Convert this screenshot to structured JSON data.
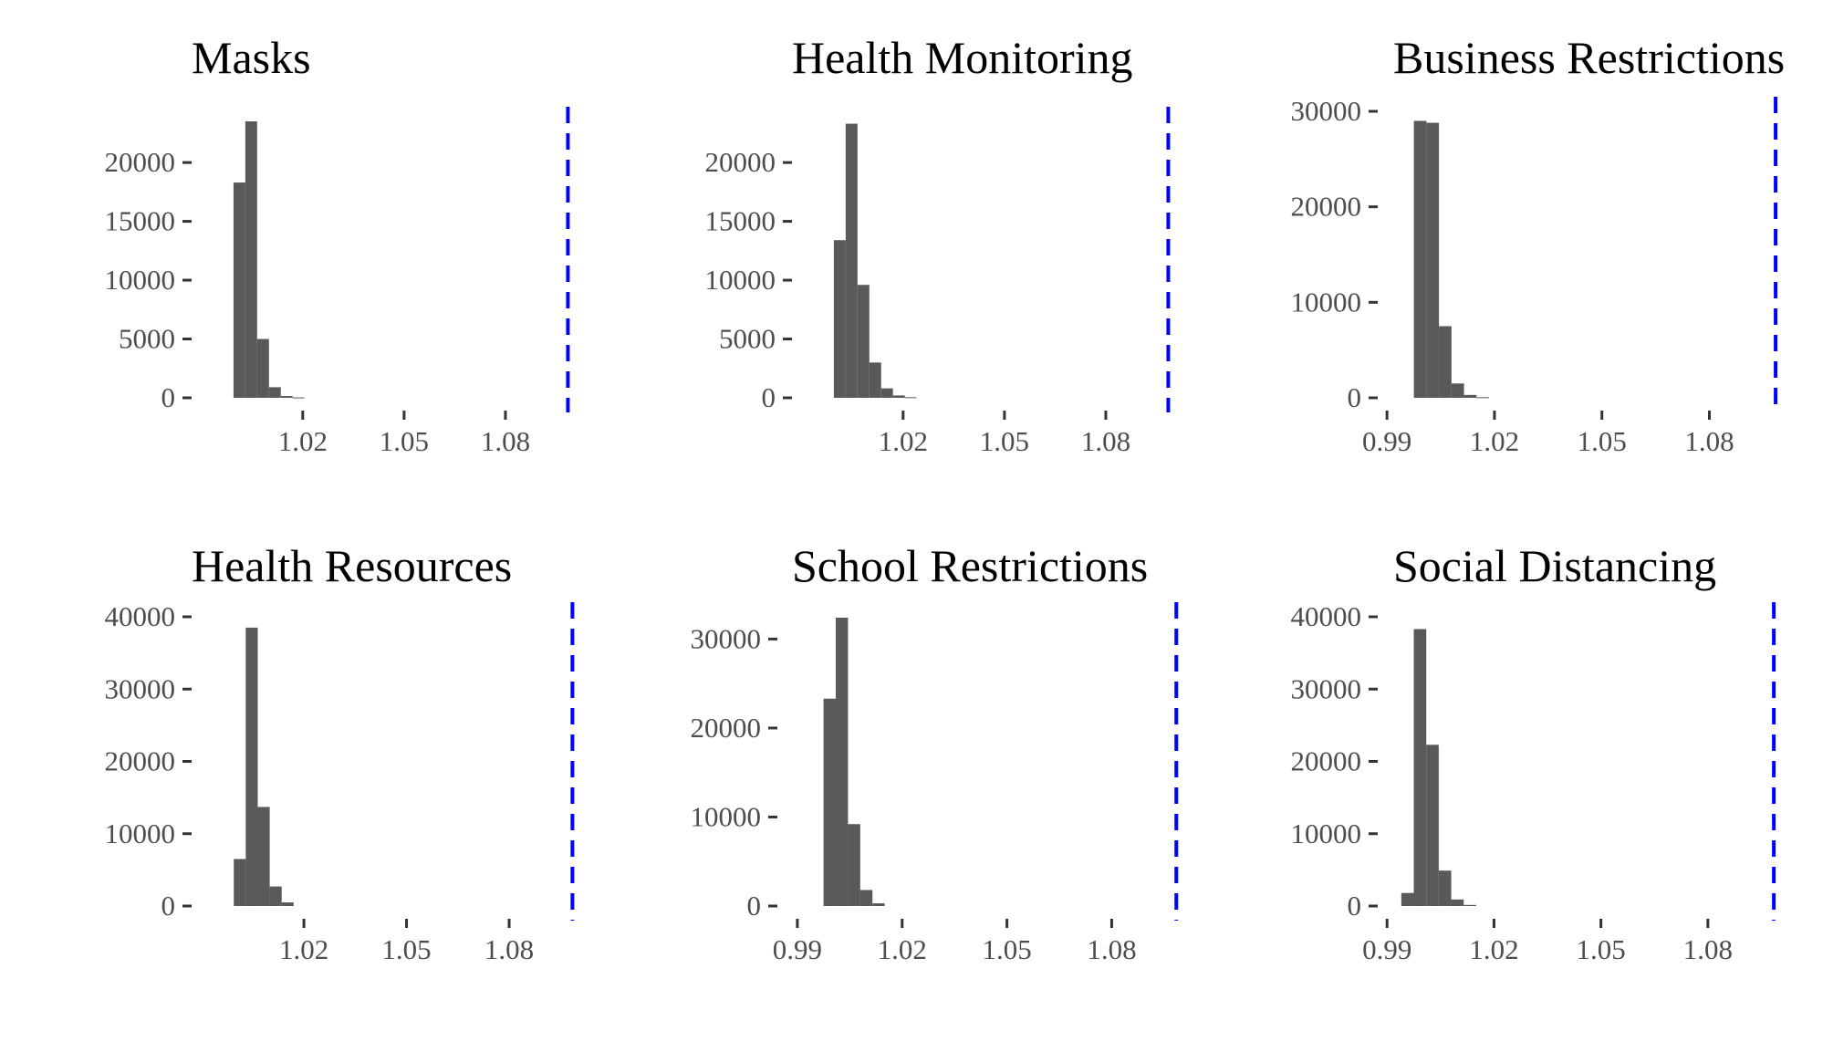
{
  "colors": {
    "bar": "#595959",
    "reference_line": "#0000ff",
    "background": "#ffffff"
  },
  "chart_data": [
    {
      "type": "bar",
      "title": "Masks",
      "xlim": [
        0.9925,
        1.1
      ],
      "ylim": [
        0,
        23500
      ],
      "x_ticks": [
        1.02,
        1.05,
        1.08
      ],
      "x_tick_labels": [
        "1.02",
        "1.05",
        "1.08"
      ],
      "y_ticks": [
        0,
        5000,
        10000,
        15000,
        20000
      ],
      "y_tick_labels": [
        "0",
        "5000",
        "10000",
        "15000",
        "20000"
      ],
      "bin_width": 0.0035,
      "bins": [
        {
          "x0": 0.9995,
          "count": 18300
        },
        {
          "x0": 1.003,
          "count": 23500
        },
        {
          "x0": 1.0065,
          "count": 5000
        },
        {
          "x0": 1.01,
          "count": 900
        },
        {
          "x0": 1.0135,
          "count": 150
        },
        {
          "x0": 1.017,
          "count": 30
        }
      ],
      "reference_line_x": 1.0985
    },
    {
      "type": "bar",
      "title": "Health Monitoring",
      "xlim": [
        0.9925,
        1.1
      ],
      "ylim": [
        0,
        23500
      ],
      "x_ticks": [
        1.02,
        1.05,
        1.08
      ],
      "x_tick_labels": [
        "1.02",
        "1.05",
        "1.08"
      ],
      "y_ticks": [
        0,
        5000,
        10000,
        15000,
        20000
      ],
      "y_tick_labels": [
        "0",
        "5000",
        "10000",
        "15000",
        "20000"
      ],
      "bin_width": 0.0035,
      "bins": [
        {
          "x0": 0.9995,
          "count": 13400
        },
        {
          "x0": 1.003,
          "count": 23300
        },
        {
          "x0": 1.0065,
          "count": 9600
        },
        {
          "x0": 1.01,
          "count": 3000
        },
        {
          "x0": 1.0135,
          "count": 800
        },
        {
          "x0": 1.017,
          "count": 200
        },
        {
          "x0": 1.0205,
          "count": 50
        }
      ],
      "reference_line_x": 1.0985
    },
    {
      "type": "bar",
      "title": "Business Restrictions",
      "xlim": [
        0.9925,
        1.1
      ],
      "ylim": [
        0,
        30000
      ],
      "x_ticks": [
        0.99,
        1.02,
        1.05,
        1.08
      ],
      "x_tick_labels": [
        "0.99",
        "1.02",
        "1.05",
        "1.08"
      ],
      "y_ticks": [
        0,
        10000,
        20000,
        30000
      ],
      "y_tick_labels": [
        "0",
        "10000",
        "20000",
        "30000"
      ],
      "bin_width": 0.0035,
      "bins": [
        {
          "x0": 0.9975,
          "count": 29000
        },
        {
          "x0": 1.001,
          "count": 28800
        },
        {
          "x0": 1.0045,
          "count": 7500
        },
        {
          "x0": 1.008,
          "count": 1500
        },
        {
          "x0": 1.0115,
          "count": 300
        },
        {
          "x0": 1.015,
          "count": 60
        }
      ],
      "reference_line_x": 1.0985
    },
    {
      "type": "bar",
      "title": "Health Resources",
      "xlim": [
        0.9925,
        1.1
      ],
      "ylim": [
        0,
        40000
      ],
      "x_ticks": [
        1.02,
        1.05,
        1.08
      ],
      "x_tick_labels": [
        "1.02",
        "1.05",
        "1.08"
      ],
      "y_ticks": [
        0,
        10000,
        20000,
        30000,
        40000
      ],
      "y_tick_labels": [
        "0",
        "10000",
        "20000",
        "30000",
        "40000"
      ],
      "bin_width": 0.0035,
      "bins": [
        {
          "x0": 0.9995,
          "count": 6500
        },
        {
          "x0": 1.003,
          "count": 38500
        },
        {
          "x0": 1.0065,
          "count": 13700
        },
        {
          "x0": 1.01,
          "count": 2700
        },
        {
          "x0": 1.0135,
          "count": 500
        }
      ],
      "reference_line_x": 1.0985
    },
    {
      "type": "bar",
      "title": "School Restrictions",
      "xlim": [
        0.9895,
        1.1
      ],
      "ylim": [
        0,
        32500
      ],
      "x_ticks": [
        0.99,
        1.02,
        1.05,
        1.08
      ],
      "x_tick_labels": [
        "0.99",
        "1.02",
        "1.05",
        "1.08"
      ],
      "y_ticks": [
        0,
        10000,
        20000,
        30000
      ],
      "y_tick_labels": [
        "0",
        "10000",
        "20000",
        "30000"
      ],
      "bin_width": 0.0035,
      "bins": [
        {
          "x0": 0.9975,
          "count": 23300
        },
        {
          "x0": 1.001,
          "count": 32400
        },
        {
          "x0": 1.0045,
          "count": 9200
        },
        {
          "x0": 1.008,
          "count": 1800
        },
        {
          "x0": 1.0115,
          "count": 300
        }
      ],
      "reference_line_x": 1.0985
    },
    {
      "type": "bar",
      "title": "Social Distancing",
      "xlim": [
        0.9925,
        1.1
      ],
      "ylim": [
        0,
        40000
      ],
      "x_ticks": [
        0.99,
        1.02,
        1.05,
        1.08
      ],
      "x_tick_labels": [
        "0.99",
        "1.02",
        "1.05",
        "1.08"
      ],
      "y_ticks": [
        0,
        10000,
        20000,
        30000,
        40000
      ],
      "y_tick_labels": [
        "0",
        "10000",
        "20000",
        "30000",
        "40000"
      ],
      "bin_width": 0.0035,
      "bins": [
        {
          "x0": 0.994,
          "count": 1800
        },
        {
          "x0": 0.9975,
          "count": 38300
        },
        {
          "x0": 1.001,
          "count": 22300
        },
        {
          "x0": 1.0045,
          "count": 4900
        },
        {
          "x0": 1.008,
          "count": 900
        },
        {
          "x0": 1.0115,
          "count": 150
        }
      ],
      "reference_line_x": 1.0985
    }
  ]
}
